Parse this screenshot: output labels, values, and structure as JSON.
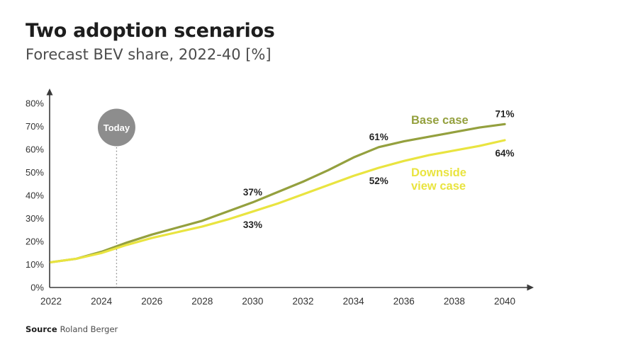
{
  "page": {
    "title": "Two adoption scenarios",
    "subtitle": "Forecast BEV share, 2022-40 [%]",
    "source_label": "Source",
    "source_value": "Roland Berger"
  },
  "colors": {
    "base_case": "#94A03E",
    "downside_case": "#E9E440",
    "today_circle": "#8D8D8D",
    "today_text": "#FFFFFF",
    "axis": "#3A3A3A",
    "tick_text": "#333333",
    "point_label": "#242424"
  },
  "today_marker": {
    "label": "Today",
    "year": 2024.6
  },
  "chart_data": {
    "type": "line",
    "title": "Two adoption scenarios",
    "subtitle": "Forecast BEV share, 2022-40 [%]",
    "xlabel": "",
    "ylabel": "",
    "xlim": [
      2022,
      2040
    ],
    "ylim": [
      0,
      80
    ],
    "grid": false,
    "legend_position": "inline-right",
    "x_ticks": [
      2022,
      2024,
      2026,
      2028,
      2030,
      2032,
      2034,
      2036,
      2038,
      2040
    ],
    "y_ticks": [
      "0%",
      "10%",
      "20%",
      "30%",
      "40%",
      "50%",
      "60%",
      "70%",
      "80%"
    ],
    "x": [
      2022,
      2023,
      2024,
      2025,
      2026,
      2027,
      2028,
      2029,
      2030,
      2031,
      2032,
      2033,
      2034,
      2035,
      2036,
      2037,
      2038,
      2039,
      2040
    ],
    "series": [
      {
        "name": "Base case",
        "color": "#94A03E",
        "values": [
          11,
          12.5,
          15.5,
          19.5,
          23,
          26,
          29,
          33,
          37,
          41.5,
          46,
          51,
          56.5,
          61,
          63.5,
          65.5,
          67.5,
          69.5,
          71
        ],
        "point_labels": [
          {
            "x": 2030,
            "text": "37%",
            "side": "above"
          },
          {
            "x": 2035,
            "text": "61%",
            "side": "above"
          },
          {
            "x": 2040,
            "text": "71%",
            "side": "above"
          }
        ],
        "legend_text": "Base case"
      },
      {
        "name": "Downside view case",
        "color": "#E9E440",
        "values": [
          11,
          12.5,
          15,
          18.5,
          21.5,
          24,
          26.5,
          29.5,
          33,
          36.5,
          40.5,
          44.5,
          48.5,
          52,
          55,
          57.5,
          59.5,
          61.5,
          64
        ],
        "point_labels": [
          {
            "x": 2030,
            "text": "33%",
            "side": "below"
          },
          {
            "x": 2035,
            "text": "52%",
            "side": "below"
          },
          {
            "x": 2040,
            "text": "64%",
            "side": "below"
          }
        ],
        "legend_text": "Downside\nview case"
      }
    ],
    "annotations": [
      {
        "name": "today",
        "text": "Today"
      }
    ]
  }
}
